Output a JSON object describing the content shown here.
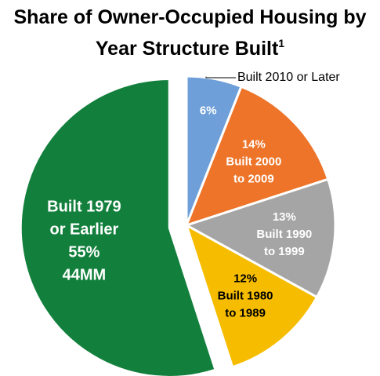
{
  "title": {
    "line1": "Share of Owner-Occupied Housing by",
    "line2": "Year Structure Built",
    "footnote_marker": "1"
  },
  "chart_data": {
    "type": "pie",
    "title": "Share of Owner-Occupied Housing by Year Structure Built",
    "slices": [
      {
        "label": "Built 2010 or Later",
        "value": 6,
        "pct_text": "6%",
        "lines": [],
        "callout": "Built 2010 or Later",
        "color": "#6f9fd8",
        "text_color": "#ffffff"
      },
      {
        "label": "Built 2000 to 2009",
        "value": 14,
        "pct_text": "14%",
        "lines": [
          "Built 2000",
          "to 2009"
        ],
        "color": "#ed7428",
        "text_color": "#ffffff"
      },
      {
        "label": "Built 1990 to 1999",
        "value": 13,
        "pct_text": "13%",
        "lines": [
          "Built 1990",
          "to 1999"
        ],
        "color": "#a5a5a5",
        "text_color": "#ffffff"
      },
      {
        "label": "Built 1980 to 1989",
        "value": 12,
        "pct_text": "12%",
        "lines": [
          "Built 1980",
          "to 1989"
        ],
        "color": "#f6bd00",
        "text_color": "#000000"
      },
      {
        "label": "Built 1979 or Earlier",
        "value": 55,
        "pct_text": "55%",
        "lines": [
          "Built 1979",
          "or Earlier"
        ],
        "extra": "44MM",
        "color": "#12803c",
        "text_color": "#ffffff"
      }
    ]
  }
}
